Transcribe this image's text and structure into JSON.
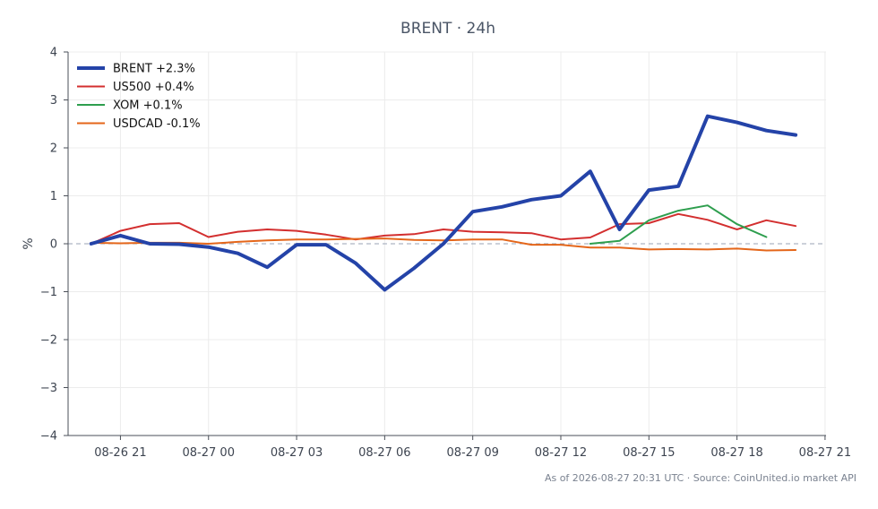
{
  "chart_data": {
    "type": "line",
    "title": "BRENT · 24h",
    "xlabel": "",
    "ylabel": "%",
    "ylim": [
      -4,
      4
    ],
    "yticks": [
      4,
      3,
      2,
      1,
      0,
      -1,
      -2,
      -3,
      -4
    ],
    "ytick_labels": [
      "4",
      "3",
      "2",
      "1",
      "0",
      "−1",
      "−2",
      "−3",
      "−4"
    ],
    "xlim": [
      "08-26 19:13",
      "08-27 21:02"
    ],
    "xticks": [
      "08-26 21:00",
      "08-27 00:00",
      "08-27 03:00",
      "08-27 06:00",
      "08-27 09:00",
      "08-27 12:00",
      "08-27 15:00",
      "08-27 18:00",
      "08-27 21:00"
    ],
    "xtick_labels": [
      "08-26 21",
      "08-27 00",
      "08-27 03",
      "08-27 06",
      "08-27 09",
      "08-27 12",
      "08-27 15",
      "08-27 18",
      "08-27 21"
    ],
    "grid": true,
    "zero_line": true,
    "legend_position": "top-left",
    "footer": "As of 2026-08-27 20:31 UTC · Source: CoinUnited.io market API",
    "series": [
      {
        "name": "BRENT +2.3%",
        "color": "#2443a8",
        "width": 4,
        "x": [
          "08-26 20:00",
          "08-26 21:00",
          "08-26 22:00",
          "08-26 23:00",
          "08-27 00:00",
          "08-27 01:00",
          "08-27 02:00",
          "08-27 03:00",
          "08-27 04:00",
          "08-27 05:00",
          "08-27 06:00",
          "08-27 07:00",
          "08-27 08:00",
          "08-27 09:00",
          "08-27 10:00",
          "08-27 11:00",
          "08-27 12:00",
          "08-27 13:00",
          "08-27 14:00",
          "08-27 15:00",
          "08-27 16:00",
          "08-27 17:00",
          "08-27 18:00",
          "08-27 19:00",
          "08-27 20:00"
        ],
        "y": [
          0.0,
          0.17,
          0.0,
          -0.01,
          -0.07,
          -0.2,
          -0.49,
          -0.02,
          -0.02,
          -0.4,
          -0.96,
          -0.51,
          0.0,
          0.67,
          0.77,
          0.92,
          1.0,
          1.51,
          0.3,
          1.12,
          1.2,
          2.66,
          2.53,
          2.36,
          2.27
        ]
      },
      {
        "name": "US500 +0.4%",
        "color": "#d32f2f",
        "width": 2,
        "x": [
          "08-26 20:00",
          "08-26 21:00",
          "08-26 22:00",
          "08-26 23:00",
          "08-27 00:00",
          "08-27 01:00",
          "08-27 02:00",
          "08-27 03:00",
          "08-27 04:00",
          "08-27 05:00",
          "08-27 06:00",
          "08-27 07:00",
          "08-27 08:00",
          "08-27 09:00",
          "08-27 10:00",
          "08-27 11:00",
          "08-27 12:00",
          "08-27 13:00",
          "08-27 14:00",
          "08-27 15:00",
          "08-27 16:00",
          "08-27 17:00",
          "08-27 18:00",
          "08-27 19:00",
          "08-27 20:00"
        ],
        "y": [
          0.0,
          0.27,
          0.41,
          0.43,
          0.14,
          0.25,
          0.3,
          0.27,
          0.19,
          0.09,
          0.17,
          0.2,
          0.3,
          0.25,
          0.24,
          0.22,
          0.09,
          0.13,
          0.41,
          0.43,
          0.62,
          0.5,
          0.3,
          0.49,
          0.37
        ]
      },
      {
        "name": "XOM +0.1%",
        "color": "#2e9e4e",
        "width": 2,
        "x": [
          "08-27 13:00",
          "08-27 14:00",
          "08-27 15:00",
          "08-27 16:00",
          "08-27 17:00",
          "08-27 18:00",
          "08-27 19:00"
        ],
        "y": [
          0.0,
          0.06,
          0.49,
          0.69,
          0.8,
          0.41,
          0.14
        ]
      },
      {
        "name": "USDCAD -0.1%",
        "color": "#e4661a",
        "width": 2,
        "x": [
          "08-26 20:00",
          "08-26 21:00",
          "08-26 22:00",
          "08-26 23:00",
          "08-27 00:00",
          "08-27 01:00",
          "08-27 02:00",
          "08-27 03:00",
          "08-27 04:00",
          "08-27 05:00",
          "08-27 06:00",
          "08-27 07:00",
          "08-27 08:00",
          "08-27 09:00",
          "08-27 10:00",
          "08-27 11:00",
          "08-27 12:00",
          "08-27 13:00",
          "08-27 14:00",
          "08-27 15:00",
          "08-27 16:00",
          "08-27 17:00",
          "08-27 18:00",
          "08-27 19:00",
          "08-27 20:00"
        ],
        "y": [
          0.02,
          0.01,
          0.02,
          0.02,
          0.0,
          0.04,
          0.07,
          0.09,
          0.09,
          0.1,
          0.11,
          0.08,
          0.07,
          0.09,
          0.09,
          -0.02,
          -0.02,
          -0.08,
          -0.08,
          -0.12,
          -0.11,
          -0.12,
          -0.1,
          -0.14,
          -0.13
        ]
      }
    ]
  }
}
